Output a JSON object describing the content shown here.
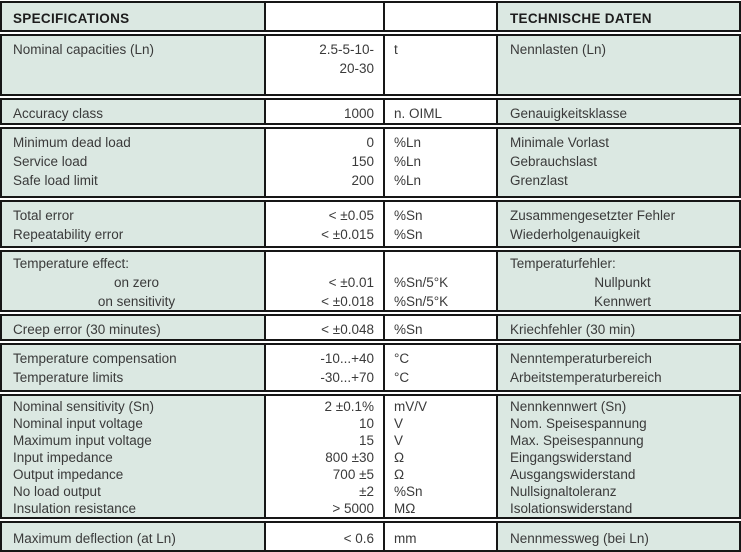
{
  "colors": {
    "row_bg": "#dbe8e2",
    "cell_bg": "#ffffff",
    "border": "#161616",
    "text": "#3a3a3a"
  },
  "header": {
    "left": "SPECIFICATIONS",
    "right": "TECHNISCHE DATEN"
  },
  "rows": [
    {
      "en": [
        "Nominal capacities (Ln)"
      ],
      "value": [
        "2.5-5-10-",
        "20-30"
      ],
      "unit": [
        "t"
      ],
      "de": [
        "Nennlasten (Ln)"
      ]
    },
    {
      "en": [
        "Accuracy class"
      ],
      "value": [
        "1000"
      ],
      "unit": [
        "n. OIML"
      ],
      "de": [
        "Genauigkeitsklasse"
      ]
    },
    {
      "en": [
        "Minimum dead load",
        "Service load",
        "Safe load limit"
      ],
      "value": [
        "0",
        "150",
        "200"
      ],
      "unit": [
        "%Ln",
        "%Ln",
        "%Ln"
      ],
      "de": [
        "Minimale Vorlast",
        "Gebrauchslast",
        "Grenzlast"
      ]
    },
    {
      "en": [
        "Total error",
        "Repeatability error"
      ],
      "value": [
        "< ±0.05",
        "< ±0.015"
      ],
      "unit": [
        "%Sn",
        "%Sn"
      ],
      "de": [
        "Zusammengesetzter Fehler",
        "Wiederholgenauigkeit"
      ]
    },
    {
      "en": [
        "Temperature effect:",
        "on zero",
        "on sensitivity"
      ],
      "value": [
        "",
        "< ±0.01",
        "< ±0.018"
      ],
      "unit": [
        "",
        "%Sn/5°K",
        "%Sn/5°K"
      ],
      "de": [
        "Temperaturfehler:",
        "Nullpunkt",
        "Kennwert"
      ]
    },
    {
      "en": [
        "Creep error (30 minutes)"
      ],
      "value": [
        "< ±0.048"
      ],
      "unit": [
        "%Sn"
      ],
      "de": [
        "Kriechfehler (30 min)"
      ]
    },
    {
      "en": [
        "Temperature compensation",
        "Temperature limits"
      ],
      "value": [
        "-10...+40",
        "-30...+70"
      ],
      "unit": [
        "°C",
        "°C"
      ],
      "de": [
        "Nenntemperaturbereich",
        "Arbeitstemperaturbereich"
      ]
    },
    {
      "en": [
        "Nominal sensitivity (Sn)",
        "Nominal input voltage",
        "Maximum input voltage",
        "Input impedance",
        "Output impedance",
        "No load output",
        "Insulation resistance"
      ],
      "value": [
        "2 ±0.1%",
        "10",
        "15",
        "800 ±30",
        "700 ±5",
        "±2",
        "> 5000"
      ],
      "unit": [
        "mV/V",
        "V",
        "V",
        "Ω",
        "Ω",
        "%Sn",
        "MΩ"
      ],
      "de": [
        "Nennkennwert (Sn)",
        "Nom. Speisespannung",
        "Max. Speisespannung",
        "Eingangswiderstand",
        "Ausgangswiderstand",
        "Nullsignaltoleranz",
        "Isolationswiderstand"
      ]
    },
    {
      "en": [
        "Maximum deflection (at Ln)"
      ],
      "value": [
        "< 0.6"
      ],
      "unit": [
        "mm"
      ],
      "de": [
        "Nennmessweg (bei Ln)"
      ]
    }
  ]
}
